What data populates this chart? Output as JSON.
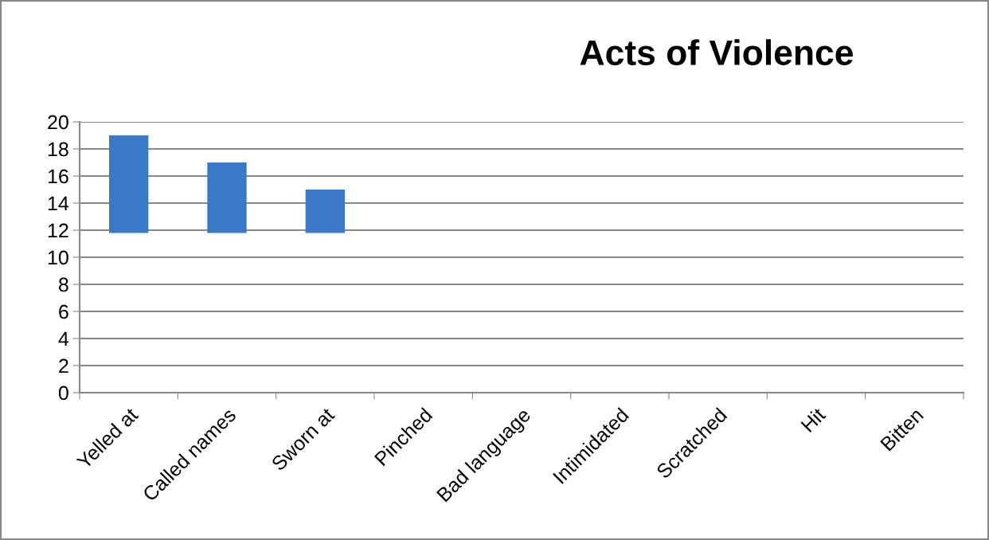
{
  "chart_data": {
    "type": "bar",
    "title": "Acts of Violence",
    "categories": [
      "Yelled at",
      "Called names",
      "Sworn at",
      "Pinched",
      "Bad language",
      "Intimidated",
      "Scratched",
      "Hit",
      "Bitten"
    ],
    "base": [
      11.8,
      11.8,
      11.8,
      null,
      null,
      null,
      null,
      null,
      null
    ],
    "values": [
      7.2,
      5.2,
      3.2,
      null,
      null,
      null,
      null,
      null,
      null
    ],
    "color": "#3a78c8",
    "ylim": [
      0,
      20
    ],
    "yticks": [
      0,
      2,
      4,
      6,
      8,
      10,
      12,
      14,
      16,
      18,
      20
    ],
    "grid": "y"
  }
}
